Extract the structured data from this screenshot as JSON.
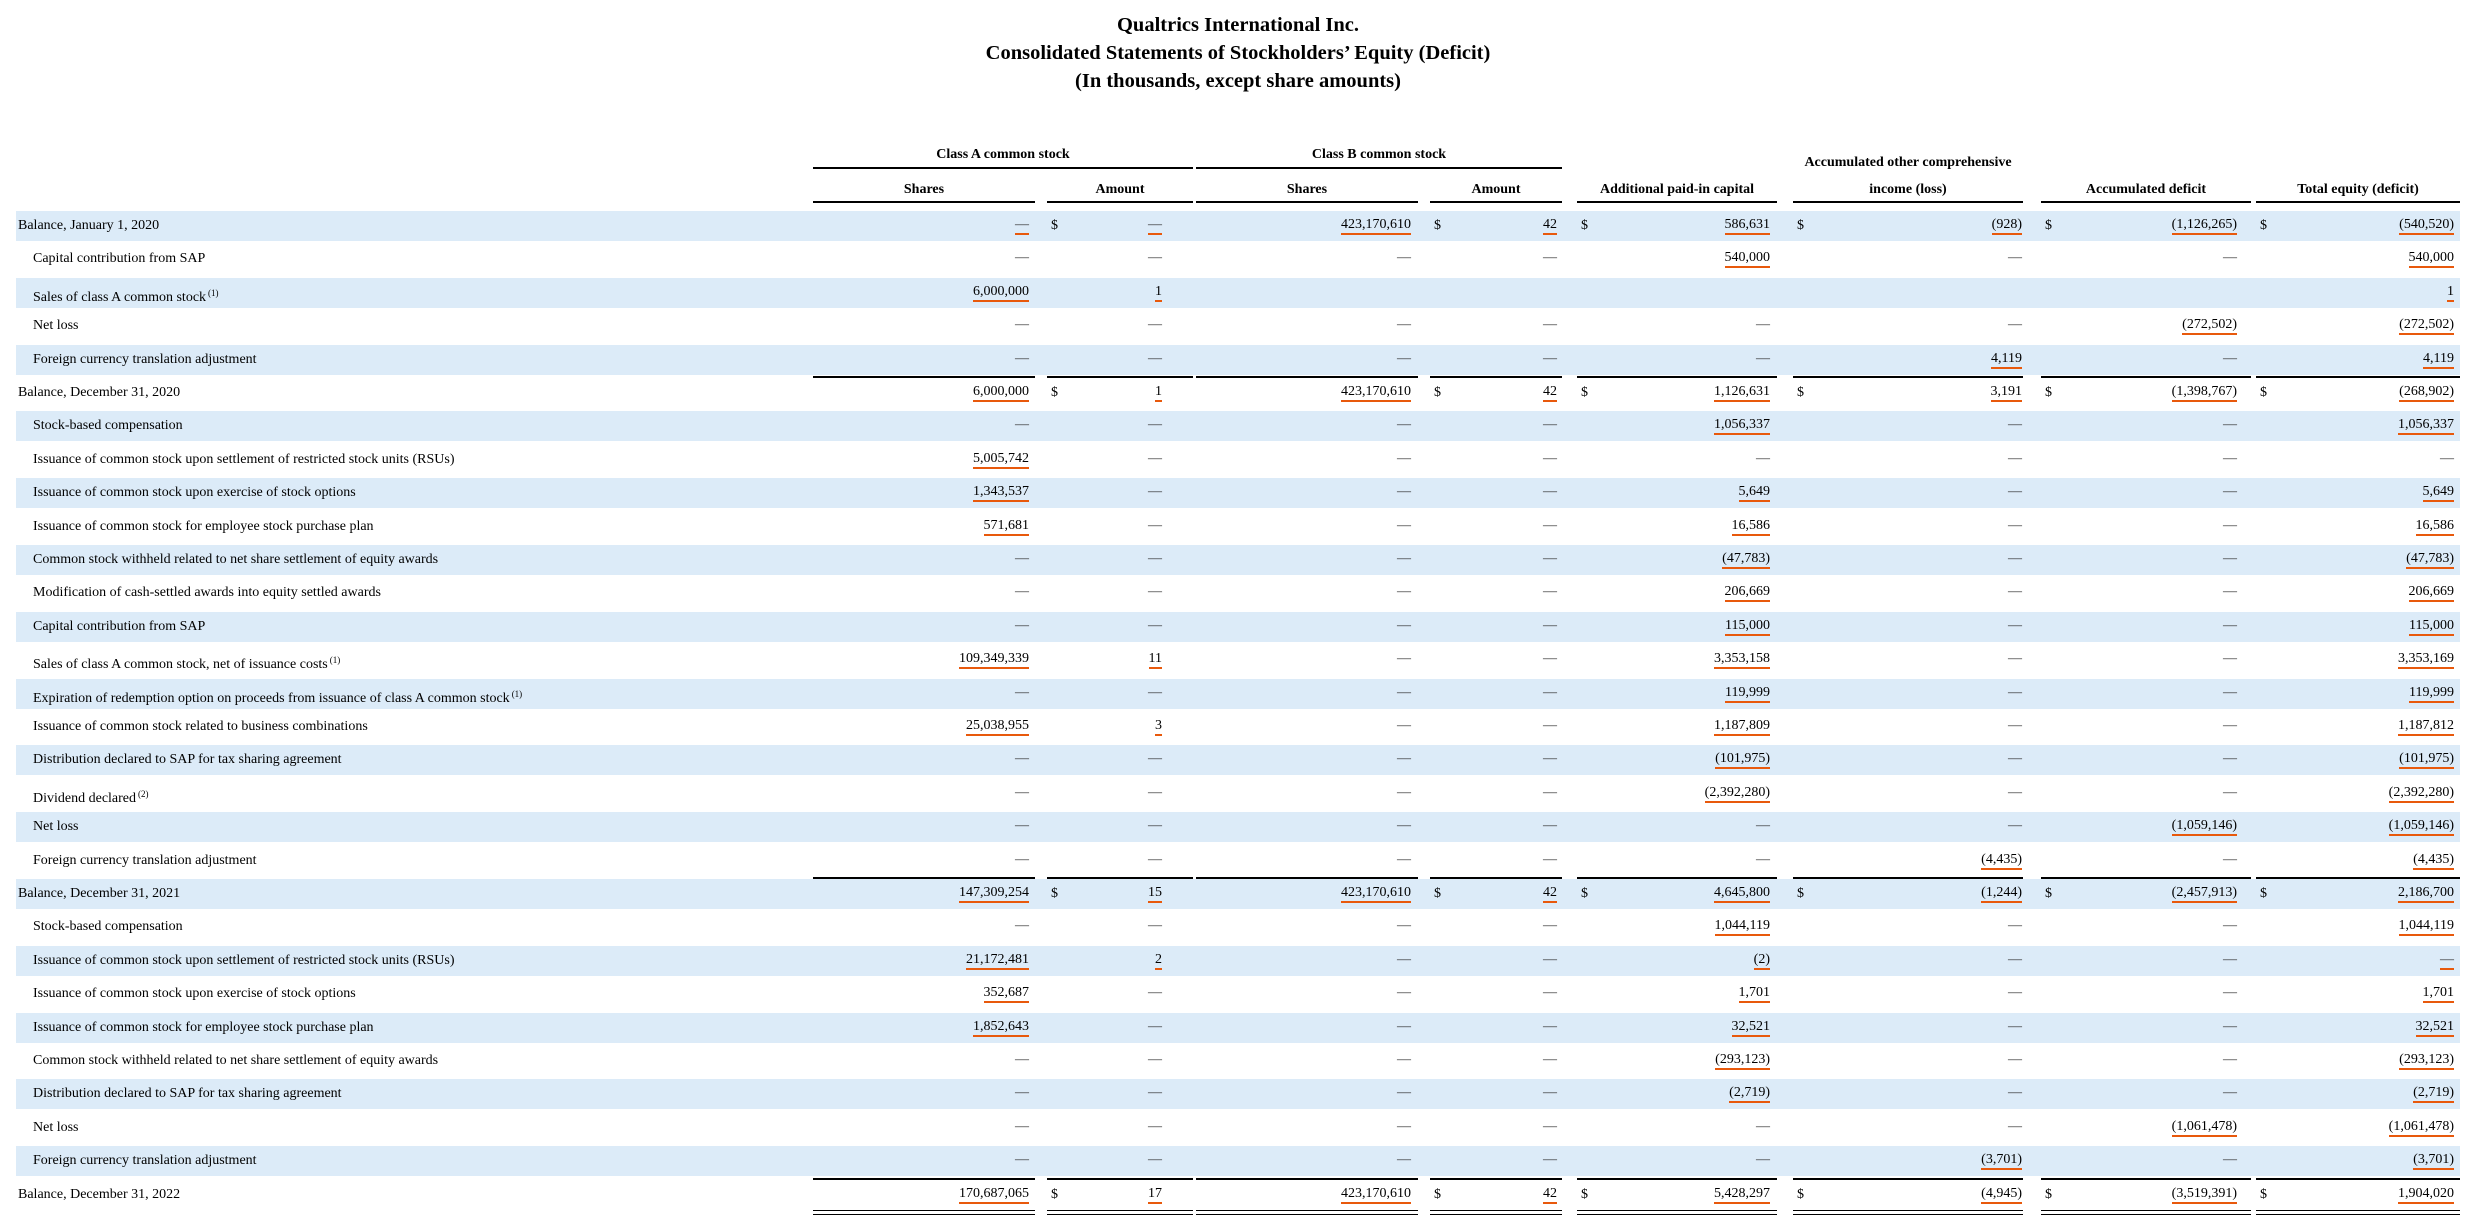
{
  "header": {
    "company": "Qualtrics International Inc.",
    "statement": "Consolidated Statements of Stockholders’ Equity (Deficit)",
    "units": "(In thousands, except share amounts)"
  },
  "column_groups": [
    {
      "label": "Class A common stock"
    },
    {
      "label": "Class B common stock"
    },
    {
      "label": "Accumulated other comprehensive"
    }
  ],
  "columns": [
    {
      "label": "Shares"
    },
    {
      "label": "Amount"
    },
    {
      "label": "Shares"
    },
    {
      "label": "Amount"
    },
    {
      "label": "Additional paid-in capital"
    },
    {
      "label": "income (loss)"
    },
    {
      "label": "Accumulated deficit"
    },
    {
      "label": "Total equity (deficit)"
    }
  ],
  "dollar_sign": "$",
  "rows": [
    {
      "label": "Balance, January 1, 2020",
      "fn": "",
      "indent": false,
      "dollar": true,
      "cells": [
        "—",
        "—",
        "423,170,610",
        "42",
        "586,631",
        "(928)",
        "(1,126,265)",
        "(540,520)"
      ],
      "hl": [
        1,
        1,
        1,
        1,
        1,
        1,
        1,
        1
      ]
    },
    {
      "label": "Capital contribution from SAP",
      "fn": "",
      "indent": true,
      "dollar": false,
      "cells": [
        "—",
        "—",
        "—",
        "—",
        "540,000",
        "—",
        "—",
        "540,000"
      ],
      "hl": [
        0,
        0,
        0,
        0,
        1,
        0,
        0,
        1
      ]
    },
    {
      "label": "Sales of class A common stock",
      "fn": "(1)",
      "indent": true,
      "dollar": false,
      "cells": [
        "6,000,000",
        "1",
        "",
        "",
        "",
        "",
        "",
        "1"
      ],
      "hl": [
        1,
        1,
        0,
        0,
        0,
        0,
        0,
        1
      ]
    },
    {
      "label": "Net loss",
      "fn": "",
      "indent": true,
      "dollar": false,
      "cells": [
        "—",
        "—",
        "—",
        "—",
        "—",
        "—",
        "(272,502)",
        "(272,502)"
      ],
      "hl": [
        0,
        0,
        0,
        0,
        0,
        0,
        1,
        1
      ]
    },
    {
      "label": "Foreign currency translation adjustment",
      "fn": "",
      "indent": true,
      "dollar": false,
      "cells": [
        "—",
        "—",
        "—",
        "—",
        "—",
        "4,119",
        "—",
        "4,119"
      ],
      "hl": [
        0,
        0,
        0,
        0,
        0,
        1,
        0,
        1
      ]
    },
    {
      "label": "Balance, December 31, 2020",
      "fn": "",
      "indent": false,
      "dollar": true,
      "cells": [
        "6,000,000",
        "1",
        "423,170,610",
        "42",
        "1,126,631",
        "3,191",
        "(1,398,767)",
        "(268,902)"
      ],
      "hl": [
        1,
        1,
        1,
        1,
        1,
        1,
        1,
        1
      ]
    },
    {
      "label": "Stock-based compensation",
      "fn": "",
      "indent": true,
      "dollar": false,
      "cells": [
        "—",
        "—",
        "—",
        "—",
        "1,056,337",
        "—",
        "—",
        "1,056,337"
      ],
      "hl": [
        0,
        0,
        0,
        0,
        1,
        0,
        0,
        1
      ]
    },
    {
      "label": "Issuance of common stock upon settlement of restricted stock units (RSUs)",
      "fn": "",
      "indent": true,
      "dollar": false,
      "cells": [
        "5,005,742",
        "—",
        "—",
        "—",
        "—",
        "—",
        "—",
        "—"
      ],
      "hl": [
        1,
        0,
        0,
        0,
        0,
        0,
        0,
        0
      ]
    },
    {
      "label": "Issuance of common stock upon exercise of stock options",
      "fn": "",
      "indent": true,
      "dollar": false,
      "cells": [
        "1,343,537",
        "—",
        "—",
        "—",
        "5,649",
        "—",
        "—",
        "5,649"
      ],
      "hl": [
        1,
        0,
        0,
        0,
        1,
        0,
        0,
        1
      ]
    },
    {
      "label": "Issuance of common stock for employee stock purchase plan",
      "fn": "",
      "indent": true,
      "dollar": false,
      "cells": [
        "571,681",
        "—",
        "—",
        "—",
        "16,586",
        "—",
        "—",
        "16,586"
      ],
      "hl": [
        1,
        0,
        0,
        0,
        1,
        0,
        0,
        1
      ]
    },
    {
      "label": "Common stock withheld related to net share settlement of equity awards",
      "fn": "",
      "indent": true,
      "dollar": false,
      "cells": [
        "—",
        "—",
        "—",
        "—",
        "(47,783)",
        "—",
        "—",
        "(47,783)"
      ],
      "hl": [
        0,
        0,
        0,
        0,
        1,
        0,
        0,
        1
      ]
    },
    {
      "label": "Modification of cash-settled awards into equity settled awards",
      "fn": "",
      "indent": true,
      "dollar": false,
      "cells": [
        "—",
        "—",
        "—",
        "—",
        "206,669",
        "—",
        "—",
        "206,669"
      ],
      "hl": [
        0,
        0,
        0,
        0,
        1,
        0,
        0,
        1
      ]
    },
    {
      "label": "Capital contribution from SAP",
      "fn": "",
      "indent": true,
      "dollar": false,
      "cells": [
        "—",
        "—",
        "—",
        "—",
        "115,000",
        "—",
        "—",
        "115,000"
      ],
      "hl": [
        0,
        0,
        0,
        0,
        1,
        0,
        0,
        1
      ]
    },
    {
      "label": "Sales of class A common stock, net of issuance costs",
      "fn": "(1)",
      "indent": true,
      "dollar": false,
      "cells": [
        "109,349,339",
        "11",
        "—",
        "—",
        "3,353,158",
        "—",
        "—",
        "3,353,169"
      ],
      "hl": [
        1,
        1,
        0,
        0,
        1,
        0,
        0,
        1
      ]
    },
    {
      "label": "Expiration of redemption option on proceeds from issuance of class A common stock",
      "fn": "(1)",
      "indent": true,
      "dollar": false,
      "cells": [
        "—",
        "—",
        "—",
        "—",
        "119,999",
        "—",
        "—",
        "119,999"
      ],
      "hl": [
        0,
        0,
        0,
        0,
        1,
        0,
        0,
        1
      ]
    },
    {
      "label": "Issuance of common stock related to business combinations",
      "fn": "",
      "indent": true,
      "dollar": false,
      "cells": [
        "25,038,955",
        "3",
        "—",
        "—",
        "1,187,809",
        "—",
        "—",
        "1,187,812"
      ],
      "hl": [
        1,
        1,
        0,
        0,
        1,
        0,
        0,
        1
      ]
    },
    {
      "label": "Distribution declared to SAP for tax sharing agreement",
      "fn": "",
      "indent": true,
      "dollar": false,
      "cells": [
        "—",
        "—",
        "—",
        "—",
        "(101,975)",
        "—",
        "—",
        "(101,975)"
      ],
      "hl": [
        0,
        0,
        0,
        0,
        1,
        0,
        0,
        1
      ]
    },
    {
      "label": "Dividend declared",
      "fn": "(2)",
      "indent": true,
      "dollar": false,
      "cells": [
        "—",
        "—",
        "—",
        "—",
        "(2,392,280)",
        "—",
        "—",
        "(2,392,280)"
      ],
      "hl": [
        0,
        0,
        0,
        0,
        1,
        0,
        0,
        1
      ]
    },
    {
      "label": "Net loss",
      "fn": "",
      "indent": true,
      "dollar": false,
      "cells": [
        "—",
        "—",
        "—",
        "—",
        "—",
        "—",
        "(1,059,146)",
        "(1,059,146)"
      ],
      "hl": [
        0,
        0,
        0,
        0,
        0,
        0,
        1,
        1
      ]
    },
    {
      "label": "Foreign currency translation adjustment",
      "fn": "",
      "indent": true,
      "dollar": false,
      "cells": [
        "—",
        "—",
        "—",
        "—",
        "—",
        "(4,435)",
        "—",
        "(4,435)"
      ],
      "hl": [
        0,
        0,
        0,
        0,
        0,
        1,
        0,
        1
      ]
    },
    {
      "label": "Balance, December 31, 2021",
      "fn": "",
      "indent": false,
      "dollar": true,
      "cells": [
        "147,309,254",
        "15",
        "423,170,610",
        "42",
        "4,645,800",
        "(1,244)",
        "(2,457,913)",
        "2,186,700"
      ],
      "hl": [
        1,
        1,
        1,
        1,
        1,
        1,
        1,
        1
      ]
    },
    {
      "label": "Stock-based compensation",
      "fn": "",
      "indent": true,
      "dollar": false,
      "cells": [
        "—",
        "—",
        "—",
        "—",
        "1,044,119",
        "—",
        "—",
        "1,044,119"
      ],
      "hl": [
        0,
        0,
        0,
        0,
        1,
        0,
        0,
        1
      ]
    },
    {
      "label": "Issuance of common stock upon settlement of restricted stock units (RSUs)",
      "fn": "",
      "indent": true,
      "dollar": false,
      "cells": [
        "21,172,481",
        "2",
        "—",
        "—",
        "(2)",
        "—",
        "—",
        "—"
      ],
      "hl": [
        1,
        1,
        0,
        0,
        1,
        0,
        0,
        1
      ]
    },
    {
      "label": "Issuance of common stock upon exercise of stock options",
      "fn": "",
      "indent": true,
      "dollar": false,
      "cells": [
        "352,687",
        "—",
        "—",
        "—",
        "1,701",
        "—",
        "—",
        "1,701"
      ],
      "hl": [
        1,
        0,
        0,
        0,
        1,
        0,
        0,
        1
      ]
    },
    {
      "label": "Issuance of common stock for employee stock purchase plan",
      "fn": "",
      "indent": true,
      "dollar": false,
      "cells": [
        "1,852,643",
        "—",
        "—",
        "—",
        "32,521",
        "—",
        "—",
        "32,521"
      ],
      "hl": [
        1,
        0,
        0,
        0,
        1,
        0,
        0,
        1
      ]
    },
    {
      "label": "Common stock withheld related to net share settlement of equity awards",
      "fn": "",
      "indent": true,
      "dollar": false,
      "cells": [
        "—",
        "—",
        "—",
        "—",
        "(293,123)",
        "—",
        "—",
        "(293,123)"
      ],
      "hl": [
        0,
        0,
        0,
        0,
        1,
        0,
        0,
        1
      ]
    },
    {
      "label": "Distribution declared to SAP for tax sharing agreement",
      "fn": "",
      "indent": true,
      "dollar": false,
      "cells": [
        "—",
        "—",
        "—",
        "—",
        "(2,719)",
        "—",
        "—",
        "(2,719)"
      ],
      "hl": [
        0,
        0,
        0,
        0,
        1,
        0,
        0,
        1
      ]
    },
    {
      "label": "Net loss",
      "fn": "",
      "indent": true,
      "dollar": false,
      "cells": [
        "—",
        "—",
        "—",
        "—",
        "—",
        "—",
        "(1,061,478)",
        "(1,061,478)"
      ],
      "hl": [
        0,
        0,
        0,
        0,
        0,
        0,
        1,
        1
      ]
    },
    {
      "label": "Foreign currency translation adjustment",
      "fn": "",
      "indent": true,
      "dollar": false,
      "cells": [
        "—",
        "—",
        "—",
        "—",
        "—",
        "(3,701)",
        "—",
        "(3,701)"
      ],
      "hl": [
        0,
        0,
        0,
        0,
        0,
        1,
        0,
        1
      ]
    },
    {
      "label": "Balance, December 31, 2022",
      "fn": "",
      "indent": false,
      "dollar": true,
      "cells": [
        "170,687,065",
        "17",
        "423,170,610",
        "42",
        "5,428,297",
        "(4,945)",
        "(3,519,391)",
        "1,904,020"
      ],
      "hl": [
        1,
        1,
        1,
        1,
        1,
        1,
        1,
        1
      ]
    }
  ]
}
